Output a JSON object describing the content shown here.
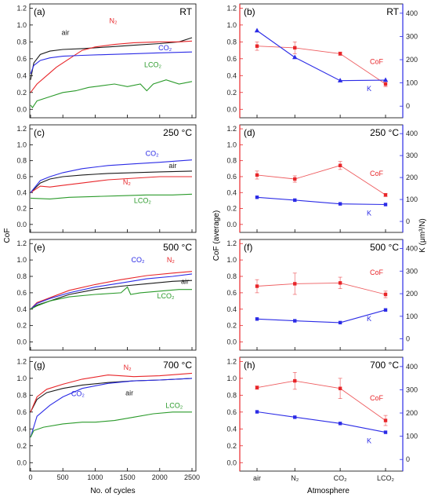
{
  "colors": {
    "air": "#1a1a1a",
    "N2": "#e8262a",
    "CO2": "#2b2be6",
    "LCO2": "#2a9a2a",
    "cof": "#e8262a",
    "k": "#2b2be6"
  },
  "left_axis": {
    "ylabel": "CoF",
    "xlabel": "No. of cycles",
    "xticks": [
      "0",
      "500",
      "1000",
      "1500",
      "2000",
      "2500"
    ],
    "yticks": [
      "0.0",
      "0.2",
      "0.4",
      "0.6",
      "0.8",
      "1.0",
      "1.2"
    ]
  },
  "right_axis": {
    "xlabel": "Atmosphere",
    "ylabel_left": "CoF (average)",
    "ylabel_right": "K (μm³/N)",
    "left_yticks": [
      "0.0",
      "0.2",
      "0.4",
      "0.6",
      "0.8",
      "1.0",
      "1.2"
    ],
    "right_yticks": [
      "0",
      "100",
      "200",
      "300",
      "400"
    ],
    "categories": [
      "air",
      "N2",
      "CO2",
      "LCO2"
    ]
  },
  "panels": [
    {
      "label": "(a)",
      "temp": "RT"
    },
    {
      "label": "(b)",
      "temp": "RT"
    },
    {
      "label": "(c)",
      "temp": "250 °C"
    },
    {
      "label": "(d)",
      "temp": "250 °C"
    },
    {
      "label": "(e)",
      "temp": "500 °C"
    },
    {
      "label": "(f)",
      "temp": "500 °C"
    },
    {
      "label": "(g)",
      "temp": "700 °C"
    },
    {
      "label": "(h)",
      "temp": "700 °C"
    }
  ],
  "chart_data": [
    {
      "type": "line",
      "panel": "(a)",
      "temp": "RT",
      "xlim": [
        0,
        2500
      ],
      "ylim": [
        -0.1,
        1.25
      ],
      "series": [
        {
          "name": "air",
          "x": [
            0,
            50,
            150,
            300,
            500,
            800,
            1200,
            1600,
            2000,
            2300,
            2500
          ],
          "y": [
            0.35,
            0.55,
            0.65,
            0.69,
            0.71,
            0.72,
            0.74,
            0.76,
            0.78,
            0.8,
            0.85
          ]
        },
        {
          "name": "N2",
          "x": [
            0,
            100,
            250,
            400,
            600,
            800,
            1000,
            1300,
            1600,
            2000,
            2300,
            2500
          ],
          "y": [
            0.2,
            0.3,
            0.4,
            0.5,
            0.6,
            0.7,
            0.74,
            0.77,
            0.79,
            0.8,
            0.8,
            0.81
          ]
        },
        {
          "name": "CO2",
          "x": [
            0,
            50,
            150,
            300,
            500,
            800,
            1200,
            1600,
            2000,
            2500
          ],
          "y": [
            0.42,
            0.52,
            0.58,
            0.61,
            0.63,
            0.64,
            0.65,
            0.66,
            0.67,
            0.68
          ]
        },
        {
          "name": "LCO2",
          "x": [
            0,
            30,
            100,
            300,
            500,
            700,
            900,
            1100,
            1300,
            1500,
            1700,
            1800,
            1900,
            2100,
            2300,
            2500
          ],
          "y": [
            0.05,
            0.02,
            0.1,
            0.15,
            0.2,
            0.22,
            0.26,
            0.28,
            0.3,
            0.27,
            0.3,
            0.22,
            0.3,
            0.35,
            0.3,
            0.33
          ]
        }
      ],
      "labels": [
        {
          "series": "air",
          "text": "air",
          "x": 480,
          "y": 0.88
        },
        {
          "series": "N2",
          "text": "N₂",
          "x": 1220,
          "y": 1.02
        },
        {
          "series": "CO2",
          "text": "CO₂",
          "x": 1980,
          "y": 0.7
        },
        {
          "series": "LCO2",
          "text": "LCO₂",
          "x": 1760,
          "y": 0.5
        }
      ]
    },
    {
      "type": "line",
      "panel": "(c)",
      "temp": "250 °C",
      "xlim": [
        0,
        2500
      ],
      "ylim": [
        -0.1,
        1.25
      ],
      "series": [
        {
          "name": "air",
          "x": [
            0,
            150,
            300,
            500,
            800,
            1200,
            1600,
            2000,
            2500
          ],
          "y": [
            0.4,
            0.52,
            0.57,
            0.6,
            0.62,
            0.64,
            0.65,
            0.66,
            0.67
          ]
        },
        {
          "name": "N2",
          "x": [
            0,
            150,
            300,
            500,
            800,
            1200,
            1600,
            2000,
            2500
          ],
          "y": [
            0.4,
            0.48,
            0.47,
            0.49,
            0.52,
            0.56,
            0.58,
            0.6,
            0.6
          ]
        },
        {
          "name": "CO2",
          "x": [
            0,
            150,
            300,
            500,
            800,
            1200,
            1600,
            2000,
            2500
          ],
          "y": [
            0.4,
            0.55,
            0.6,
            0.65,
            0.7,
            0.74,
            0.76,
            0.78,
            0.81
          ]
        },
        {
          "name": "LCO2",
          "x": [
            0,
            300,
            600,
            1000,
            1400,
            1800,
            2200,
            2500
          ],
          "y": [
            0.33,
            0.32,
            0.34,
            0.35,
            0.36,
            0.37,
            0.37,
            0.38
          ]
        }
      ],
      "labels": [
        {
          "series": "CO2",
          "text": "CO₂",
          "x": 1780,
          "y": 0.86
        },
        {
          "series": "air",
          "text": "air",
          "x": 2140,
          "y": 0.71
        },
        {
          "series": "N2",
          "text": "N₂",
          "x": 1430,
          "y": 0.5
        },
        {
          "series": "LCO2",
          "text": "LCO₂",
          "x": 1600,
          "y": 0.27
        }
      ]
    },
    {
      "type": "line",
      "panel": "(e)",
      "temp": "500 °C",
      "xlim": [
        0,
        2500
      ],
      "ylim": [
        -0.1,
        1.25
      ],
      "series": [
        {
          "name": "air",
          "x": [
            0,
            100,
            300,
            600,
            1000,
            1400,
            1800,
            2200,
            2500
          ],
          "y": [
            0.4,
            0.45,
            0.5,
            0.58,
            0.64,
            0.68,
            0.71,
            0.74,
            0.75
          ]
        },
        {
          "name": "N2",
          "x": [
            0,
            100,
            300,
            600,
            1000,
            1400,
            1800,
            2200,
            2500
          ],
          "y": [
            0.4,
            0.48,
            0.54,
            0.63,
            0.7,
            0.76,
            0.81,
            0.84,
            0.86
          ]
        },
        {
          "name": "CO2",
          "x": [
            0,
            100,
            300,
            600,
            1000,
            1400,
            1800,
            2200,
            2500
          ],
          "y": [
            0.4,
            0.47,
            0.53,
            0.6,
            0.67,
            0.72,
            0.77,
            0.8,
            0.83
          ]
        },
        {
          "name": "LCO2",
          "x": [
            0,
            100,
            300,
            600,
            1000,
            1400,
            1500,
            1550,
            1700,
            2000,
            2300,
            2500
          ],
          "y": [
            0.4,
            0.44,
            0.5,
            0.55,
            0.58,
            0.6,
            0.67,
            0.58,
            0.6,
            0.62,
            0.64,
            0.64
          ]
        }
      ],
      "labels": [
        {
          "series": "CO2",
          "text": "CO₂",
          "x": 1560,
          "y": 0.97
        },
        {
          "series": "N2",
          "text": "N₂",
          "x": 2110,
          "y": 0.97
        },
        {
          "series": "air",
          "text": "air",
          "x": 2330,
          "y": 0.71
        },
        {
          "series": "LCO2",
          "text": "LCO₂",
          "x": 1960,
          "y": 0.53
        }
      ]
    },
    {
      "type": "line",
      "panel": "(g)",
      "temp": "700 °C",
      "xlim": [
        0,
        2500
      ],
      "ylim": [
        -0.1,
        1.25
      ],
      "series": [
        {
          "name": "air",
          "x": [
            0,
            100,
            250,
            500,
            800,
            1200,
            1600,
            2000,
            2500
          ],
          "y": [
            0.6,
            0.75,
            0.83,
            0.88,
            0.92,
            0.95,
            0.97,
            0.98,
            1.0
          ]
        },
        {
          "name": "N2",
          "x": [
            0,
            100,
            250,
            500,
            800,
            1200,
            1600,
            2000,
            2500
          ],
          "y": [
            0.6,
            0.78,
            0.87,
            0.93,
            0.99,
            1.04,
            1.02,
            1.03,
            1.06
          ]
        },
        {
          "name": "CO2",
          "x": [
            0,
            100,
            300,
            500,
            800,
            1200,
            1600,
            2000,
            2500
          ],
          "y": [
            0.3,
            0.55,
            0.68,
            0.78,
            0.88,
            0.94,
            0.97,
            0.98,
            1.0
          ]
        },
        {
          "name": "LCO2",
          "x": [
            0,
            50,
            200,
            500,
            800,
            1000,
            1300,
            1600,
            1900,
            2200,
            2500
          ],
          "y": [
            0.3,
            0.38,
            0.42,
            0.46,
            0.48,
            0.48,
            0.5,
            0.54,
            0.58,
            0.6,
            0.6
          ]
        }
      ],
      "labels": [
        {
          "series": "N2",
          "text": "N₂",
          "x": 1440,
          "y": 1.1
        },
        {
          "series": "CO2",
          "text": "CO₂",
          "x": 630,
          "y": 0.79
        },
        {
          "series": "air",
          "text": "air",
          "x": 1470,
          "y": 0.8
        },
        {
          "series": "LCO2",
          "text": "LCO₂",
          "x": 2090,
          "y": 0.65
        }
      ]
    },
    {
      "type": "line",
      "panel": "(b)",
      "temp": "RT",
      "categories": [
        "air",
        "N2",
        "CO2",
        "LCO2"
      ],
      "ylim_left": [
        -0.1,
        1.25
      ],
      "ylim_right": [
        -50,
        440
      ],
      "series": [
        {
          "name": "CoF",
          "axis": "left",
          "values": [
            0.75,
            0.73,
            0.66,
            0.3
          ],
          "err": [
            0.05,
            0.07,
            0.02,
            0.03
          ]
        },
        {
          "name": "K",
          "axis": "right",
          "values": [
            325,
            210,
            110,
            112
          ]
        }
      ]
    },
    {
      "type": "line",
      "panel": "(d)",
      "temp": "250 °C",
      "categories": [
        "air",
        "N2",
        "CO2",
        "LCO2"
      ],
      "ylim_left": [
        -0.1,
        1.25
      ],
      "ylim_right": [
        -50,
        440
      ],
      "series": [
        {
          "name": "CoF",
          "axis": "left",
          "values": [
            0.62,
            0.57,
            0.74,
            0.37
          ],
          "err": [
            0.05,
            0.04,
            0.05,
            0.02
          ]
        },
        {
          "name": "K",
          "axis": "right",
          "values": [
            110,
            97,
            80,
            77
          ]
        }
      ]
    },
    {
      "type": "line",
      "panel": "(f)",
      "temp": "500 °C",
      "categories": [
        "air",
        "N2",
        "CO2",
        "LCO2"
      ],
      "ylim_left": [
        -0.1,
        1.25
      ],
      "ylim_right": [
        -50,
        440
      ],
      "series": [
        {
          "name": "CoF",
          "axis": "left",
          "values": [
            0.68,
            0.71,
            0.72,
            0.58
          ],
          "err": [
            0.08,
            0.13,
            0.07,
            0.04
          ]
        },
        {
          "name": "K",
          "axis": "right",
          "values": [
            88,
            80,
            72,
            128
          ]
        }
      ]
    },
    {
      "type": "line",
      "panel": "(h)",
      "temp": "700 °C",
      "categories": [
        "air",
        "N2",
        "CO2",
        "LCO2"
      ],
      "ylim_left": [
        -0.1,
        1.25
      ],
      "ylim_right": [
        -50,
        440
      ],
      "series": [
        {
          "name": "CoF",
          "axis": "left",
          "values": [
            0.89,
            0.97,
            0.88,
            0.5
          ],
          "err": [
            0.02,
            0.1,
            0.12,
            0.06
          ]
        },
        {
          "name": "K",
          "axis": "right",
          "values": [
            205,
            182,
            155,
            117
          ]
        }
      ]
    }
  ]
}
